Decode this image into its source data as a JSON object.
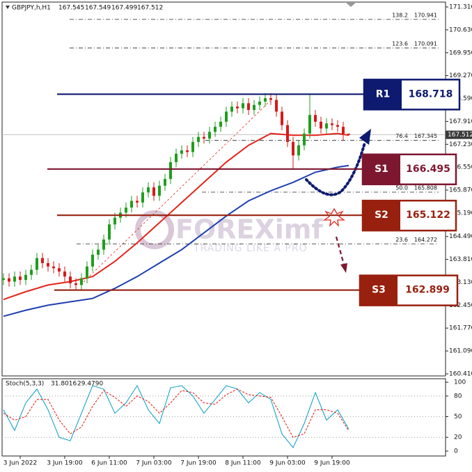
{
  "chart_data": {
    "type": "candlestick",
    "title": "GBPJPY,h,H1",
    "up_color": "#1e9e1e",
    "down_color": "#d41a1a",
    "xlim": [
      -0.5,
      158.75
    ],
    "ylim": [
      160.348,
      171.455
    ],
    "xticks": [
      {
        "value": 6,
        "label": "3 Jun 2022"
      },
      {
        "value": 22,
        "label": "3 Jun 19:00"
      },
      {
        "value": 38,
        "label": "6 Jun 11:00"
      },
      {
        "value": 54,
        "label": "7 Jun 03:00"
      },
      {
        "value": 70,
        "label": "7 Jun 19:00"
      },
      {
        "value": 86,
        "label": "8 Jun 11:00"
      },
      {
        "value": 102,
        "label": "9 Jun 03:00"
      },
      {
        "value": 118,
        "label": "9 Jun 19:00"
      }
    ],
    "yticks": [
      {
        "value": 171.31,
        "label": "171.310"
      },
      {
        "value": 170.63,
        "label": "170.630"
      },
      {
        "value": 169.95,
        "label": "169.950"
      },
      {
        "value": 169.27,
        "label": "169.270"
      },
      {
        "value": 168.59,
        "label": "168.590"
      },
      {
        "value": 167.91,
        "label": "167.910"
      },
      {
        "value": 167.23,
        "label": "167.230"
      },
      {
        "value": 166.55,
        "label": "166.550"
      },
      {
        "value": 165.87,
        "label": "165.870"
      },
      {
        "value": 165.19,
        "label": "165.190"
      },
      {
        "value": 164.49,
        "label": "164.490"
      },
      {
        "value": 163.81,
        "label": "163.810"
      },
      {
        "value": 163.13,
        "label": "163.130"
      },
      {
        "value": 162.45,
        "label": "162.450"
      },
      {
        "value": 161.77,
        "label": "161.770"
      },
      {
        "value": 161.09,
        "label": "161.090"
      },
      {
        "value": 160.41,
        "label": "160.410"
      }
    ],
    "x": [
      0,
      2,
      4,
      6,
      8,
      10,
      12,
      14,
      16,
      18,
      20,
      22,
      24,
      26,
      28,
      30,
      32,
      34,
      36,
      38,
      40,
      42,
      44,
      46,
      48,
      50,
      52,
      54,
      56,
      58,
      60,
      62,
      64,
      66,
      68,
      70,
      72,
      74,
      76,
      78,
      80,
      82,
      84,
      86,
      88,
      90,
      92,
      94,
      96,
      98,
      100,
      102,
      104,
      106,
      108,
      110,
      112,
      114,
      116,
      118,
      120,
      122,
      124
    ],
    "open": [
      163.2,
      163.25,
      163.15,
      163.3,
      163.2,
      163.35,
      163.5,
      163.85,
      163.7,
      163.6,
      163.55,
      163.45,
      163.3,
      163.1,
      163.05,
      163.25,
      163.6,
      163.95,
      164.1,
      164.4,
      164.85,
      165.05,
      165.2,
      165.35,
      165.55,
      165.5,
      165.8,
      165.95,
      165.7,
      166.0,
      166.2,
      166.7,
      166.95,
      167.05,
      167.0,
      167.3,
      167.45,
      167.4,
      167.6,
      167.75,
      167.9,
      168.2,
      168.35,
      168.3,
      168.45,
      168.25,
      168.4,
      168.5,
      168.6,
      168.55,
      168.2,
      167.8,
      167.3,
      166.9,
      167.2,
      167.55,
      168.1,
      167.9,
      167.7,
      167.85,
      167.8,
      167.75,
      167.545
    ],
    "high": [
      163.4,
      163.4,
      163.45,
      163.45,
      163.5,
      163.65,
      164.0,
      164.0,
      163.85,
      163.75,
      163.7,
      163.6,
      163.45,
      163.25,
      163.4,
      163.75,
      164.1,
      164.25,
      164.55,
      165.0,
      165.2,
      165.35,
      165.5,
      165.7,
      165.7,
      165.95,
      166.1,
      166.1,
      166.15,
      166.35,
      166.85,
      167.1,
      167.2,
      167.2,
      167.45,
      167.6,
      167.6,
      167.75,
      167.9,
      168.05,
      168.35,
      168.5,
      168.5,
      168.6,
      168.6,
      168.55,
      168.65,
      168.75,
      168.75,
      168.7,
      168.35,
      167.95,
      167.45,
      167.35,
      167.7,
      168.7,
      168.25,
      168.05,
      168.0,
      168.0,
      167.95,
      167.9,
      167.549
    ],
    "low": [
      163.05,
      163.0,
      163.0,
      163.05,
      163.05,
      163.2,
      163.35,
      163.55,
      163.45,
      163.4,
      163.3,
      163.15,
      162.95,
      162.9,
      162.9,
      163.1,
      163.45,
      163.8,
      163.95,
      164.25,
      164.7,
      164.9,
      165.05,
      165.2,
      165.35,
      165.35,
      165.65,
      165.55,
      165.55,
      165.85,
      166.05,
      166.55,
      166.8,
      166.85,
      166.85,
      167.15,
      167.25,
      167.25,
      167.45,
      167.6,
      167.75,
      168.05,
      168.15,
      168.15,
      168.1,
      168.1,
      168.25,
      168.35,
      168.4,
      168.05,
      167.65,
      167.15,
      166.5,
      166.75,
      167.05,
      167.4,
      167.75,
      167.55,
      167.55,
      167.65,
      167.6,
      167.35,
      167.499
    ],
    "close": [
      163.25,
      163.15,
      163.3,
      163.2,
      163.35,
      163.5,
      163.85,
      163.7,
      163.6,
      163.55,
      163.45,
      163.3,
      163.1,
      163.05,
      163.25,
      163.6,
      163.95,
      164.1,
      164.4,
      164.85,
      165.05,
      165.2,
      165.35,
      165.55,
      165.5,
      165.8,
      165.95,
      165.7,
      166.0,
      166.2,
      166.7,
      166.95,
      167.05,
      167.0,
      167.3,
      167.45,
      167.4,
      167.6,
      167.75,
      167.9,
      168.2,
      168.35,
      168.3,
      168.45,
      168.25,
      168.4,
      168.5,
      168.6,
      168.55,
      168.2,
      167.8,
      167.3,
      166.9,
      167.2,
      167.55,
      168.1,
      167.9,
      167.7,
      167.85,
      167.8,
      167.75,
      167.545,
      167.512
    ],
    "series": [
      {
        "color": "#e3241b",
        "x": [
          0,
          8,
          16,
          24,
          32,
          40,
          48,
          56,
          64,
          72,
          80,
          88,
          96,
          104,
          112,
          120,
          124
        ],
        "values": [
          162.62,
          162.85,
          163.05,
          163.15,
          163.3,
          163.75,
          164.3,
          164.9,
          165.5,
          166.1,
          166.7,
          167.2,
          167.55,
          167.5,
          167.5,
          167.55,
          167.5
        ]
      },
      {
        "color": "#1f3fb0",
        "x": [
          0,
          8,
          16,
          24,
          32,
          40,
          48,
          56,
          64,
          72,
          80,
          88,
          96,
          104,
          112,
          120,
          124
        ],
        "values": [
          162.12,
          162.3,
          162.45,
          162.55,
          162.65,
          162.95,
          163.3,
          163.7,
          164.1,
          164.6,
          165.1,
          165.55,
          165.85,
          166.1,
          166.4,
          166.55,
          166.6
        ]
      }
    ],
    "levels": [
      {
        "name": "R1",
        "value": 168.718,
        "color": "#0e1a70"
      },
      {
        "name": "S1",
        "value": 166.495,
        "color": "#7d1730"
      },
      {
        "name": "S2",
        "value": 165.122,
        "color": "#98200f"
      },
      {
        "name": "S3",
        "value": 162.899,
        "color": "#98200f"
      }
    ],
    "fib_levels": [
      {
        "label": "138.2",
        "value": 170.941
      },
      {
        "label": "123.6",
        "value": 170.091
      },
      {
        "label": "76.4",
        "value": 167.345
      },
      {
        "label": "50.0",
        "value": 165.808
      },
      {
        "label": "23.6",
        "value": 164.272
      }
    ],
    "watermark": {
      "brand": "FOREXimf",
      "tagline": "TRADING LIKE A PRO"
    },
    "stochastic": {
      "title": "Stoch(5,3,3)",
      "ylim": [
        -7.1,
        105.1
      ],
      "yticks": [
        100,
        80,
        50,
        20,
        0
      ],
      "grid": true,
      "x": [
        0,
        4,
        8,
        12,
        16,
        20,
        24,
        28,
        32,
        36,
        40,
        44,
        48,
        52,
        56,
        60,
        64,
        68,
        72,
        76,
        80,
        84,
        88,
        92,
        96,
        100,
        104,
        108,
        112,
        116,
        120,
        124
      ],
      "series": [
        {
          "color": "#1aa3c8",
          "values": [
            60,
            30,
            70,
            90,
            60,
            20,
            15,
            55,
            95,
            90,
            55,
            70,
            95,
            60,
            40,
            92,
            95,
            80,
            55,
            75,
            95,
            90,
            70,
            85,
            75,
            25,
            5,
            40,
            85,
            45,
            60,
            31.8016
          ]
        },
        {
          "color": "#e3241b",
          "values": [
            55,
            45,
            50,
            75,
            75,
            45,
            25,
            35,
            65,
            88,
            78,
            65,
            80,
            72,
            55,
            70,
            88,
            85,
            70,
            68,
            82,
            90,
            82,
            80,
            78,
            50,
            20,
            25,
            60,
            60,
            55,
            29.479
          ],
          "value_labels": [
            null,
            null,
            null,
            null,
            null,
            null,
            null,
            null,
            null,
            null,
            null,
            null,
            null,
            null,
            null,
            null,
            null,
            null,
            null,
            null,
            null,
            null,
            null,
            null,
            null,
            null,
            null,
            null,
            null,
            null,
            null,
            "29.4790"
          ]
        }
      ]
    }
  }
}
